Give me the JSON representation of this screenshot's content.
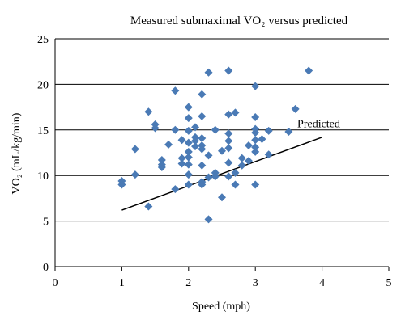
{
  "chart_data": {
    "type": "scatter",
    "title": "Measured submaximal VO₂ versus predicted",
    "xlabel": "Speed (mph)",
    "ylabel": "VO₂ (mL/kg/min)",
    "xlim": [
      0,
      5
    ],
    "ylim": [
      0,
      25
    ],
    "x_ticks": [
      "0",
      "1",
      "2",
      "3",
      "4",
      "5"
    ],
    "y_ticks": [
      "0",
      "5",
      "10",
      "15",
      "20",
      "25"
    ],
    "grid": "horizontal",
    "marker_color": "#4a7ab5",
    "line_color": "#000000",
    "series": [
      {
        "kind": "points",
        "points": [
          [
            1.0,
            9.4
          ],
          [
            1.0,
            9.0
          ],
          [
            1.2,
            10.1
          ],
          [
            1.2,
            12.9
          ],
          [
            1.4,
            6.6
          ],
          [
            1.4,
            17.0
          ],
          [
            1.5,
            15.6
          ],
          [
            1.5,
            15.2
          ],
          [
            1.6,
            11.7
          ],
          [
            1.6,
            11.2
          ],
          [
            1.6,
            10.9
          ],
          [
            1.7,
            13.4
          ],
          [
            1.8,
            19.3
          ],
          [
            1.8,
            15.0
          ],
          [
            1.8,
            8.5
          ],
          [
            1.9,
            13.9
          ],
          [
            1.9,
            11.9
          ],
          [
            1.9,
            11.3
          ],
          [
            2.0,
            17.5
          ],
          [
            2.0,
            16.3
          ],
          [
            2.0,
            14.9
          ],
          [
            2.0,
            13.6
          ],
          [
            2.0,
            12.6
          ],
          [
            2.0,
            12.0
          ],
          [
            2.0,
            11.2
          ],
          [
            2.0,
            10.1
          ],
          [
            2.0,
            9.0
          ],
          [
            2.1,
            15.3
          ],
          [
            2.1,
            14.2
          ],
          [
            2.1,
            13.8
          ],
          [
            2.1,
            13.2
          ],
          [
            2.2,
            18.9
          ],
          [
            2.2,
            16.5
          ],
          [
            2.2,
            14.1
          ],
          [
            2.2,
            13.3
          ],
          [
            2.2,
            12.9
          ],
          [
            2.2,
            11.1
          ],
          [
            2.2,
            9.3
          ],
          [
            2.2,
            9.0
          ],
          [
            2.3,
            21.3
          ],
          [
            2.3,
            12.2
          ],
          [
            2.3,
            9.8
          ],
          [
            2.3,
            5.2
          ],
          [
            2.4,
            15.0
          ],
          [
            2.4,
            10.3
          ],
          [
            2.4,
            9.9
          ],
          [
            2.5,
            12.7
          ],
          [
            2.5,
            7.6
          ],
          [
            2.6,
            21.5
          ],
          [
            2.6,
            16.7
          ],
          [
            2.6,
            14.6
          ],
          [
            2.6,
            13.8
          ],
          [
            2.6,
            13.0
          ],
          [
            2.6,
            11.4
          ],
          [
            2.6,
            9.9
          ],
          [
            2.7,
            16.9
          ],
          [
            2.7,
            10.3
          ],
          [
            2.7,
            9.0
          ],
          [
            2.8,
            11.1
          ],
          [
            2.8,
            11.9
          ],
          [
            2.9,
            13.3
          ],
          [
            2.9,
            11.6
          ],
          [
            3.0,
            19.8
          ],
          [
            3.0,
            16.4
          ],
          [
            3.0,
            15.1
          ],
          [
            3.0,
            14.7
          ],
          [
            3.0,
            13.9
          ],
          [
            3.0,
            13.1
          ],
          [
            3.0,
            12.6
          ],
          [
            3.0,
            9.0
          ],
          [
            3.1,
            14.0
          ],
          [
            3.2,
            14.9
          ],
          [
            3.2,
            12.3
          ],
          [
            3.5,
            14.8
          ],
          [
            3.6,
            17.3
          ],
          [
            3.8,
            21.5
          ]
        ]
      },
      {
        "kind": "line",
        "points": [
          [
            1.0,
            6.2
          ],
          [
            4.0,
            14.2
          ]
        ]
      }
    ],
    "annotations": [
      {
        "text": "Predicted",
        "x": 3.95,
        "y": 15.3
      }
    ]
  }
}
